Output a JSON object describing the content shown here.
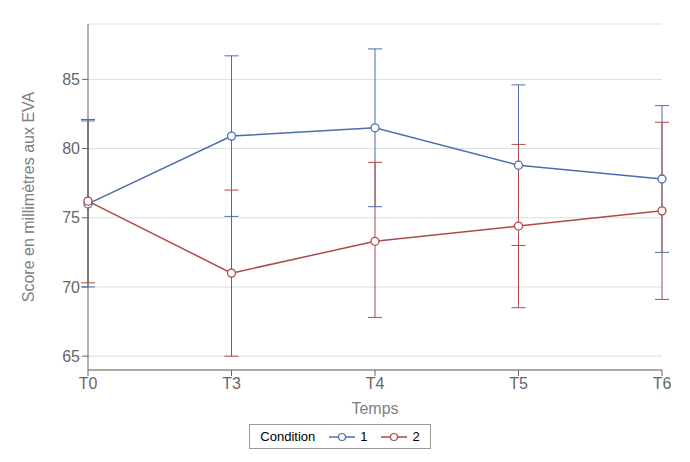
{
  "chart_data": {
    "type": "line",
    "categories": [
      "T0",
      "T3",
      "T4",
      "T5",
      "T6"
    ],
    "series": [
      {
        "name": "1",
        "color": "#4a6eae",
        "values": [
          76.0,
          80.9,
          81.5,
          78.8,
          77.8
        ],
        "ci_low": [
          70.0,
          75.1,
          75.8,
          73.0,
          72.5
        ],
        "ci_high": [
          82.0,
          86.7,
          87.2,
          84.6,
          83.1
        ]
      },
      {
        "name": "2",
        "color": "#ae4a4a",
        "values": [
          76.2,
          71.0,
          73.3,
          74.4,
          75.5
        ],
        "ci_low": [
          70.3,
          65.0,
          67.8,
          68.5,
          69.1
        ],
        "ci_high": [
          82.1,
          77.0,
          79.0,
          80.3,
          81.9
        ]
      }
    ],
    "xlabel": "Temps",
    "ylabel": "Score en millimètres aux EVA",
    "legend_title": "Condition",
    "legend": "bottom",
    "ylim": [
      64,
      89
    ],
    "yticks": [
      65,
      70,
      75,
      80,
      85
    ],
    "grid": true,
    "marker": "circle"
  }
}
